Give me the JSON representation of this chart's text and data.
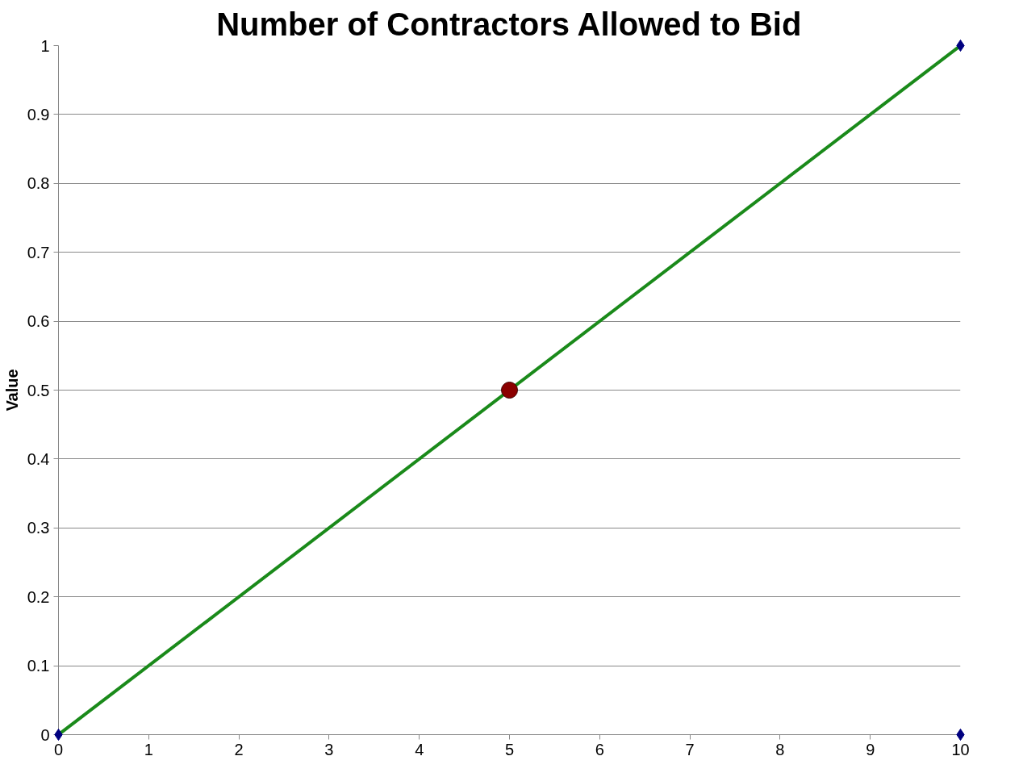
{
  "chart_data": {
    "type": "line",
    "title": "Number of Contractors Allowed to Bid",
    "ylabel": "Value",
    "xlim": [
      0,
      10
    ],
    "xticks": [
      0,
      1,
      2,
      3,
      4,
      5,
      6,
      7,
      8,
      9,
      10
    ],
    "ylim": [
      0,
      1
    ],
    "yticks": [
      0,
      0.1,
      0.2,
      0.3,
      0.4,
      0.5,
      0.6,
      0.7,
      0.8,
      0.9,
      1
    ],
    "grid": "y",
    "line_style": "solid",
    "series": [
      {
        "color": "#1a8a1a",
        "marker": "none",
        "x": [
          0,
          10
        ],
        "values": [
          0,
          1
        ]
      },
      {
        "type": "scatter",
        "color": "#000080",
        "marker": "diamond",
        "x": [
          0,
          10,
          10
        ],
        "values": [
          0,
          1,
          0
        ]
      },
      {
        "type": "scatter",
        "color": "#8b0000",
        "marker": "circle",
        "x": [
          5
        ],
        "values": [
          0.5
        ]
      }
    ]
  }
}
